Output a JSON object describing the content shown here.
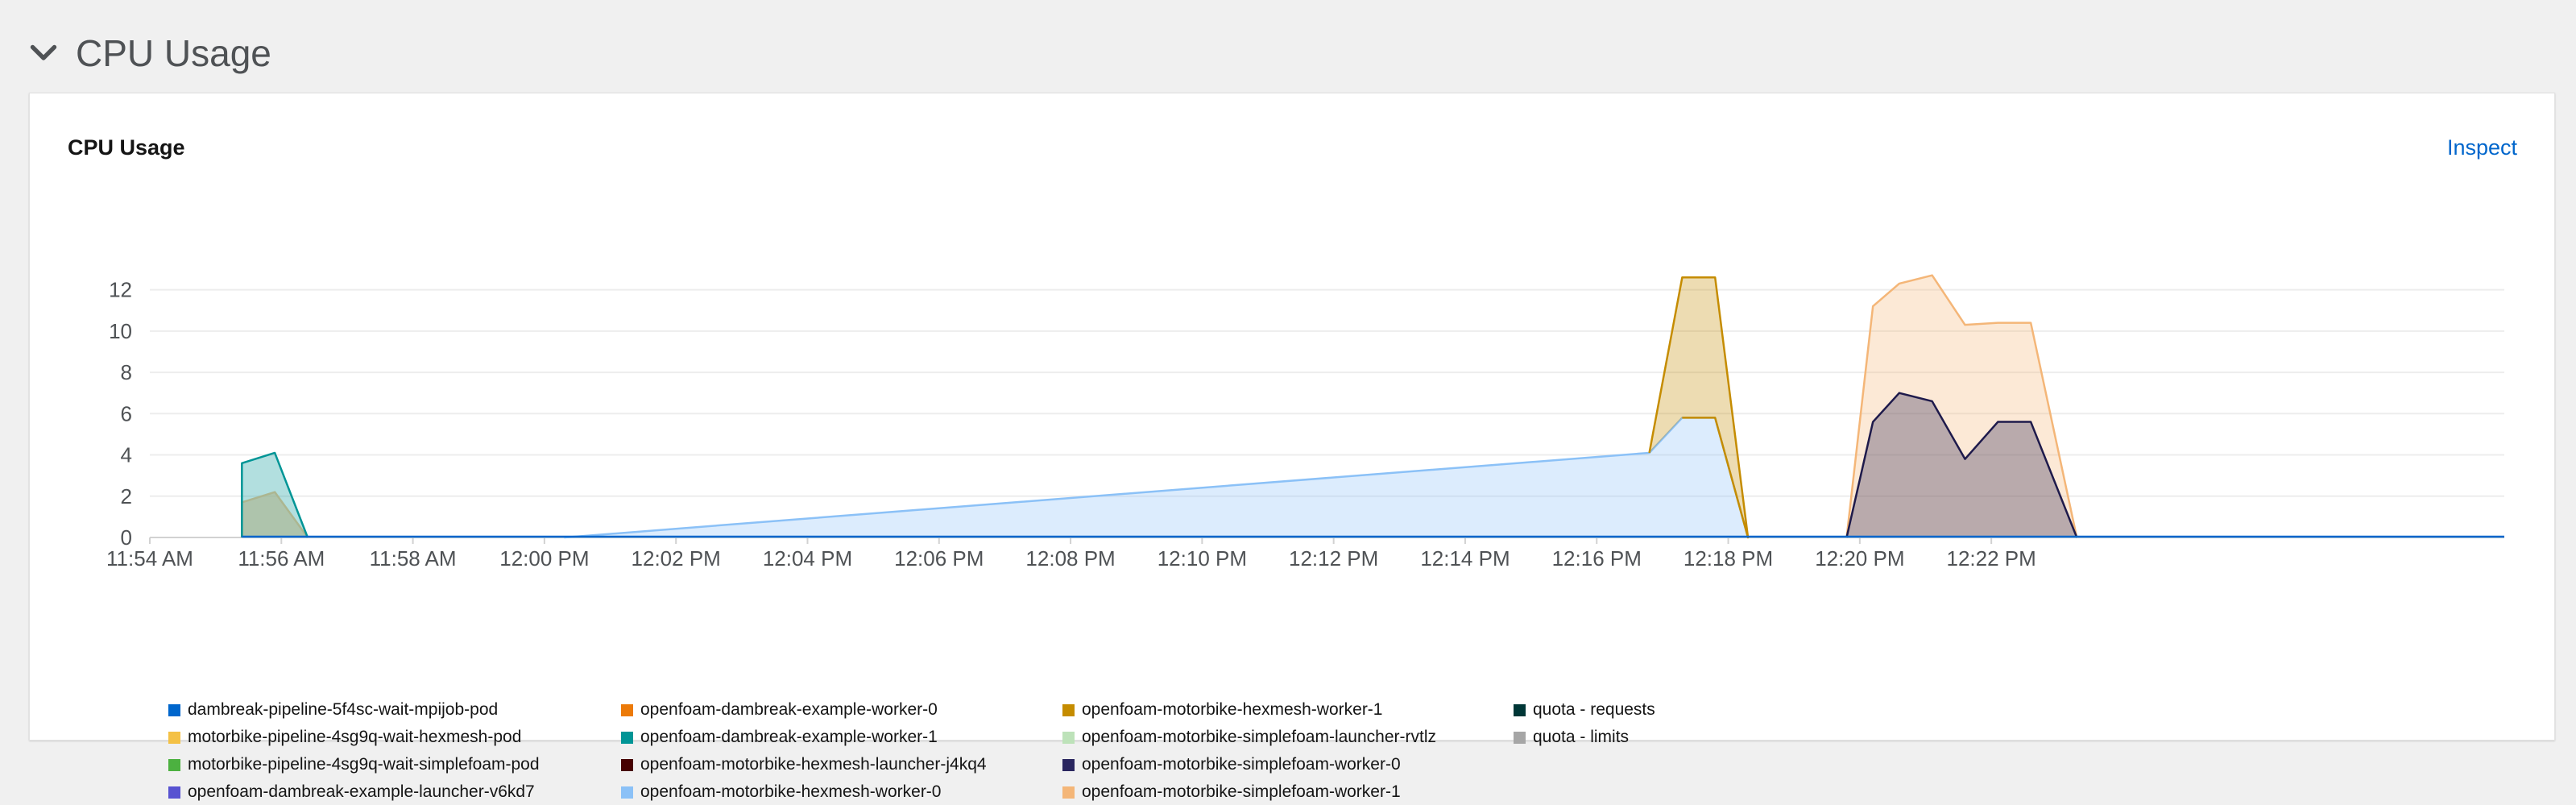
{
  "section": {
    "title": "CPU Usage",
    "chevron_icon": "chevron-down-icon"
  },
  "card": {
    "title": "CPU Usage",
    "inspect_label": "Inspect"
  },
  "chart_data": {
    "type": "area",
    "title": "CPU Usage",
    "xlabel": "",
    "ylabel": "",
    "x_range_minutes": [
      -6,
      29.8
    ],
    "x_ticks": [
      {
        "t": -6,
        "label": "11:54 AM"
      },
      {
        "t": -4,
        "label": "11:56 AM"
      },
      {
        "t": -2,
        "label": "11:58 AM"
      },
      {
        "t": 0,
        "label": "12:00 PM"
      },
      {
        "t": 2,
        "label": "12:02 PM"
      },
      {
        "t": 4,
        "label": "12:04 PM"
      },
      {
        "t": 6,
        "label": "12:06 PM"
      },
      {
        "t": 8,
        "label": "12:08 PM"
      },
      {
        "t": 10,
        "label": "12:10 PM"
      },
      {
        "t": 12,
        "label": "12:12 PM"
      },
      {
        "t": 14,
        "label": "12:14 PM"
      },
      {
        "t": 16,
        "label": "12:16 PM"
      },
      {
        "t": 18,
        "label": "12:18 PM"
      },
      {
        "t": 20,
        "label": "12:20 PM"
      },
      {
        "t": 22,
        "label": "12:22 PM"
      }
    ],
    "y_ticks": [
      0,
      2,
      4,
      6,
      8,
      10,
      12
    ],
    "ylim": [
      0,
      13
    ],
    "grid": true,
    "series": [
      {
        "name": "motorbike-pipeline-4sg9q-wait-hexmesh-pod",
        "color": "#f6c48f",
        "fill_opacity": 0.65,
        "points": [
          [
            -4.6,
            0
          ],
          [
            -4.6,
            1.7
          ],
          [
            -4.1,
            2.2
          ],
          [
            -3.6,
            0
          ]
        ]
      },
      {
        "name": "openfoam-dambreak-example-worker-1",
        "color": "#009596",
        "fill_opacity": 0.3,
        "points": [
          [
            -4.6,
            0
          ],
          [
            -4.6,
            3.6
          ],
          [
            -4.1,
            4.1
          ],
          [
            -3.6,
            0
          ]
        ]
      },
      {
        "name": "openfoam-motorbike-hexmesh-worker-0",
        "color": "#8bc1f7",
        "fill_opacity": 0.3,
        "points": [
          [
            0.3,
            0
          ],
          [
            16.8,
            4.1
          ],
          [
            17.3,
            5.8
          ],
          [
            17.8,
            5.8
          ],
          [
            18.3,
            0
          ]
        ]
      },
      {
        "name": "openfoam-motorbike-hexmesh-worker-1",
        "color": "#c58c00",
        "fill_opacity": 0.3,
        "points": [
          [
            16.8,
            4.1
          ],
          [
            17.3,
            12.6
          ],
          [
            17.8,
            12.6
          ],
          [
            18.3,
            0
          ],
          [
            17.8,
            5.8
          ],
          [
            17.3,
            5.8
          ]
        ]
      },
      {
        "name": "openfoam-motorbike-simplefoam-worker-1",
        "color": "#f4b678",
        "fill_opacity": 0.3,
        "points": [
          [
            19.8,
            0
          ],
          [
            20.2,
            11.2
          ],
          [
            20.6,
            12.3
          ],
          [
            21.1,
            12.7
          ],
          [
            21.6,
            10.3
          ],
          [
            22.1,
            10.4
          ],
          [
            22.6,
            10.4
          ],
          [
            23.3,
            0
          ]
        ]
      },
      {
        "name": "openfoam-motorbike-simplefoam-worker-0",
        "color": "#1e1a4b",
        "fill_opacity": 0.3,
        "points": [
          [
            19.8,
            0
          ],
          [
            20.2,
            5.6
          ],
          [
            20.6,
            7.0
          ],
          [
            21.1,
            6.6
          ],
          [
            21.6,
            3.8
          ],
          [
            22.1,
            5.6
          ],
          [
            22.6,
            5.6
          ],
          [
            23.3,
            0
          ]
        ]
      }
    ],
    "legend_position": "bottom-left",
    "legend": [
      {
        "name": "dambreak-pipeline-5f4sc-wait-mpijob-pod",
        "color": "#0066cc"
      },
      {
        "name": "motorbike-pipeline-4sg9q-wait-hexmesh-pod",
        "color": "#f4c145"
      },
      {
        "name": "motorbike-pipeline-4sg9q-wait-simplefoam-pod",
        "color": "#4cb140"
      },
      {
        "name": "openfoam-dambreak-example-launcher-v6kd7",
        "color": "#5752d1"
      },
      {
        "name": "openfoam-dambreak-example-worker-0",
        "color": "#ec7a08"
      },
      {
        "name": "openfoam-dambreak-example-worker-1",
        "color": "#009596"
      },
      {
        "name": "openfoam-motorbike-hexmesh-launcher-j4kq4",
        "color": "#470000"
      },
      {
        "name": "openfoam-motorbike-hexmesh-worker-0",
        "color": "#8bc1f7"
      },
      {
        "name": "openfoam-motorbike-hexmesh-worker-1",
        "color": "#c58c00"
      },
      {
        "name": "openfoam-motorbike-simplefoam-launcher-rvtlz",
        "color": "#bde2b9"
      },
      {
        "name": "openfoam-motorbike-simplefoam-worker-0",
        "color": "#2a265f"
      },
      {
        "name": "openfoam-motorbike-simplefoam-worker-1",
        "color": "#f4b678"
      },
      {
        "name": "quota - requests",
        "color": "#003737"
      },
      {
        "name": "quota - limits",
        "color": "#a6a6a6"
      }
    ]
  }
}
